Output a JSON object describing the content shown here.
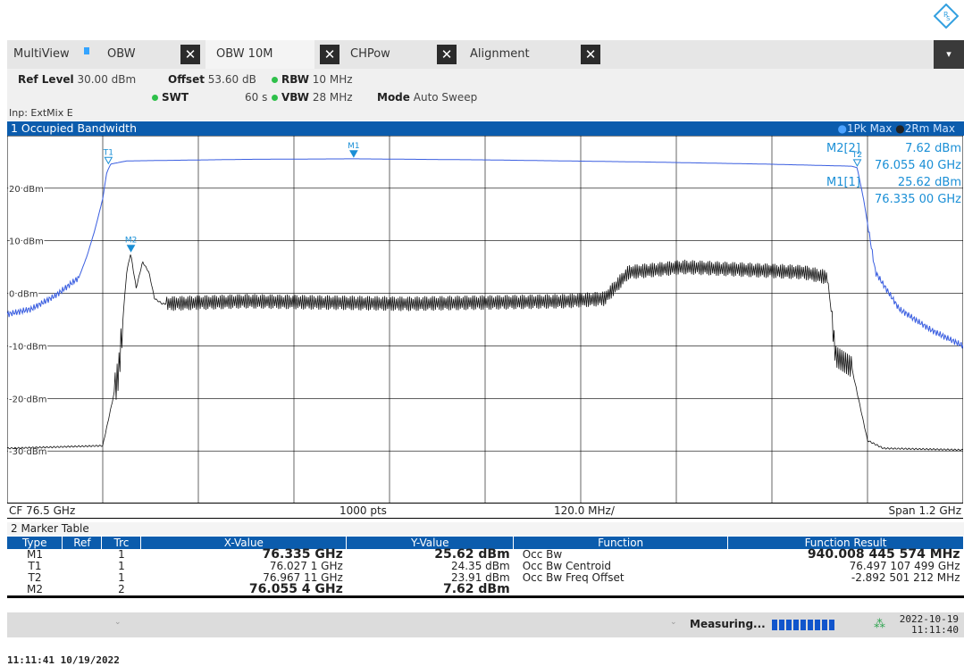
{
  "tabs": {
    "multiview_label": "MultiView",
    "items": [
      {
        "label": "OBW",
        "active": false
      },
      {
        "label": "OBW 10M",
        "active": true
      },
      {
        "label": "CHPow",
        "active": false
      },
      {
        "label": "Alignment",
        "active": false
      }
    ],
    "close_glyph": "✕",
    "menu_glyph": "▾"
  },
  "settings": {
    "ref_level_label": "Ref Level",
    "ref_level_value": "30.00 dBm",
    "offset_label": "Offset",
    "offset_value": "53.60 dB",
    "rbw_label": "RBW",
    "rbw_value": "10 MHz",
    "swt_label": "SWT",
    "swt_value": "60 s",
    "vbw_label": "VBW",
    "vbw_value": "28 MHz",
    "mode_label": "Mode",
    "mode_value": "Auto Sweep",
    "input": "Inp: ExtMix E"
  },
  "diagram": {
    "title": "1 Occupied Bandwidth",
    "legend_1": "1Pk Max",
    "legend_2": "2Rm Max",
    "cf": "CF 76.5 GHz",
    "pts": "1000 pts",
    "div": "120.0 MHz/",
    "span": "Span 1.2 GHz",
    "readout": [
      {
        "label": "M2[2]",
        "value": "7.62 dBm"
      },
      {
        "label": "",
        "value": "76.055 40 GHz"
      },
      {
        "label": "M1[1]",
        "value": "25.62 dBm"
      },
      {
        "label": "",
        "value": "76.335 00 GHz"
      }
    ],
    "marker_labels": {
      "t1": "T1",
      "t2": "T2",
      "m1": "M1",
      "m2": "M2"
    }
  },
  "chart_data": {
    "type": "line",
    "xlabel": "",
    "ylabel": "",
    "x_range_ghz": [
      75.9,
      77.1
    ],
    "ylim": [
      -40,
      30
    ],
    "y_ticks": [
      {
        "value": 20,
        "label": "20 dBm"
      },
      {
        "value": 10,
        "label": "10 dBm"
      },
      {
        "value": 0,
        "label": "0 dBm"
      },
      {
        "value": -10,
        "label": "-10 dBm"
      },
      {
        "value": -20,
        "label": "-20 dBm"
      },
      {
        "value": -30,
        "label": "-30 dBm"
      }
    ],
    "grid": true,
    "series": [
      {
        "name": "1Pk Max",
        "color": "#3a5ee0",
        "x": [
          75.9,
          75.93,
          75.96,
          75.99,
          76.0,
          76.01,
          76.02,
          76.025,
          76.03,
          76.05,
          76.2,
          76.335,
          76.5,
          76.7,
          76.85,
          76.96,
          76.967,
          76.975,
          76.99,
          77.02,
          77.06,
          77.1
        ],
        "y": [
          -4,
          -3,
          -0.5,
          3,
          7,
          12,
          18,
          23,
          24.6,
          25.2,
          25.5,
          25.6,
          25.4,
          25,
          24.6,
          24.2,
          23.9,
          18,
          4,
          -3,
          -7,
          -10
        ]
      },
      {
        "name": "2Rm Max",
        "color": "#111111",
        "x": [
          75.9,
          76.02,
          76.03,
          76.04,
          76.05,
          76.055,
          76.062,
          76.07,
          76.078,
          76.085,
          76.095,
          76.2,
          76.4,
          76.6,
          76.65,
          76.68,
          76.75,
          76.9,
          76.93,
          76.94,
          76.96,
          76.98,
          77.0,
          77.1
        ],
        "y": [
          -29.5,
          -29,
          -22,
          -15,
          4,
          7.6,
          1,
          6,
          4,
          -1,
          -2,
          -1.5,
          -2,
          -1.5,
          -1,
          4,
          5,
          4,
          3,
          -12,
          -14,
          -28,
          -29.5,
          -29.8
        ]
      }
    ]
  },
  "marker_table": {
    "title": "2 Marker Table",
    "headers": [
      "Type",
      "Ref",
      "Trc",
      "X-Value",
      "Y-Value",
      "Function",
      "Function Result"
    ],
    "rows": [
      {
        "type": "M1",
        "ref": "",
        "trc": "1",
        "x": "76.335 GHz",
        "y": "25.62 dBm",
        "fn": "Occ Bw",
        "result": "940.008 445 574 MHz",
        "bold": true
      },
      {
        "type": "T1",
        "ref": "",
        "trc": "1",
        "x": "76.027 1 GHz",
        "y": "24.35 dBm",
        "fn": "Occ Bw Centroid",
        "result": "76.497 107 499 GHz",
        "bold": false
      },
      {
        "type": "T2",
        "ref": "",
        "trc": "1",
        "x": "76.967 11 GHz",
        "y": "23.91 dBm",
        "fn": "Occ Bw Freq Offset",
        "result": "-2.892 501 212 MHz",
        "bold": false
      },
      {
        "type": "M2",
        "ref": "",
        "trc": "2",
        "x": "76.055 4 GHz",
        "y": "7.62 dBm",
        "fn": "",
        "result": "",
        "bold": true
      }
    ]
  },
  "status": {
    "measuring": "Measuring...",
    "date": "2022-10-19",
    "time": "11:11:40"
  },
  "footer": {
    "timestamp": "11:11:41   10/19/2022"
  },
  "colors": {
    "title_bar": "#0b5cad",
    "marker_cyan": "#1a8fd6",
    "progress": "#1155cc"
  },
  "icons": {
    "logo": "rohde-schwarz-logo-icon",
    "network": "network-icon"
  }
}
